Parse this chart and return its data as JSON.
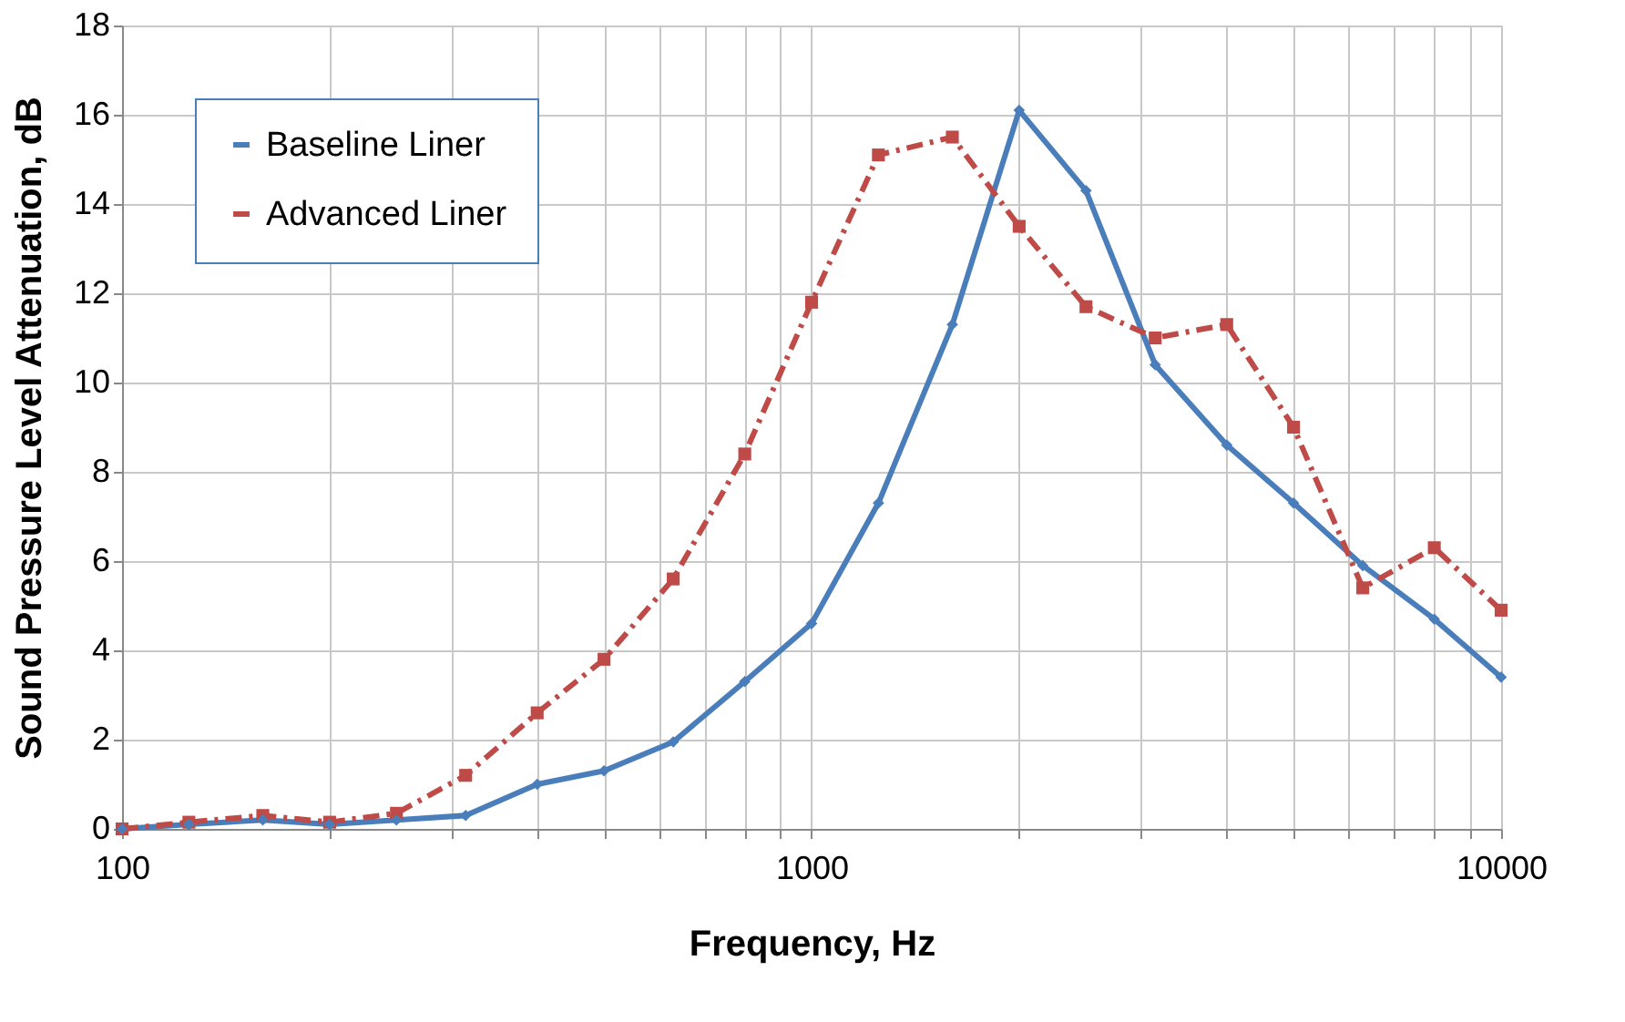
{
  "chart_data": {
    "type": "line",
    "xlabel": "Frequency, Hz",
    "ylabel": "Sound Pressure Level Attenuation, dB",
    "x": [
      100,
      125,
      160,
      200,
      250,
      315,
      400,
      500,
      630,
      800,
      1000,
      1250,
      1600,
      2000,
      2500,
      3150,
      4000,
      5000,
      6300,
      8000,
      10000
    ],
    "series": [
      {
        "name": "Baseline Liner",
        "color": "#4a7ebb",
        "marker": "diamond",
        "line_style": "solid",
        "values": [
          0,
          0.1,
          0.2,
          0.1,
          0.2,
          0.3,
          1.0,
          1.3,
          1.95,
          3.3,
          4.6,
          7.3,
          11.3,
          16.1,
          14.3,
          10.4,
          8.6,
          7.3,
          5.9,
          4.7,
          3.4
        ]
      },
      {
        "name": "Advanced Liner",
        "color": "#be4b48",
        "marker": "square",
        "line_style": "dashed",
        "values": [
          0,
          0.15,
          0.3,
          0.15,
          0.35,
          1.2,
          2.6,
          3.8,
          5.6,
          8.4,
          11.8,
          15.1,
          15.5,
          13.5,
          11.7,
          11.0,
          11.3,
          9.0,
          5.4,
          6.3,
          4.9
        ]
      }
    ],
    "log": "x",
    "xlim": [
      100,
      10000
    ],
    "xticks": [
      100,
      {
        "value": 200,
        "label": null
      },
      {
        "value": 300,
        "label": null
      },
      {
        "value": 400,
        "label": null
      },
      {
        "value": 500,
        "label": null
      },
      {
        "value": 600,
        "label": null
      },
      {
        "value": 700,
        "label": null
      },
      {
        "value": 800,
        "label": null
      },
      {
        "value": 900,
        "label": null
      },
      1000,
      {
        "value": 2000,
        "label": null
      },
      {
        "value": 3000,
        "label": null
      },
      {
        "value": 4000,
        "label": null
      },
      {
        "value": 5000,
        "label": null
      },
      {
        "value": 6000,
        "label": null
      },
      {
        "value": 7000,
        "label": null
      },
      {
        "value": 8000,
        "label": null
      },
      {
        "value": 9000,
        "label": null
      },
      10000
    ],
    "ylim": [
      0,
      18
    ],
    "yticks": [
      0,
      2,
      4,
      6,
      8,
      10,
      12,
      14,
      16,
      18
    ],
    "grid": true,
    "legend": "top left"
  }
}
